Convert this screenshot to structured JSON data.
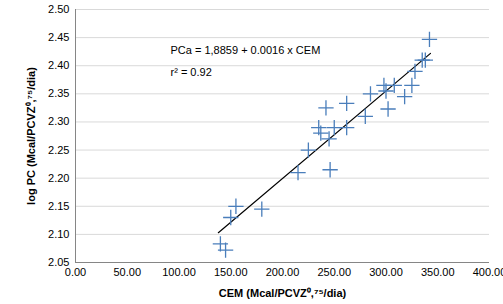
{
  "chart_data": {
    "type": "scatter",
    "x_label": "CEM (Mcal/PCVZ⁰,⁷⁵/dia)",
    "y_label": "log PC (Mcal/PCVZ⁰,⁷⁵/dia)",
    "annotations": [
      "PCa = 1,8859 + 0.0016 x CEM",
      "r² = 0.92"
    ],
    "x": [
      140,
      145,
      150,
      155,
      180,
      215,
      225,
      235,
      237,
      242,
      245,
      246,
      250,
      262,
      262,
      280,
      285,
      298,
      300,
      302,
      308,
      318,
      325,
      328,
      335,
      338,
      342
    ],
    "values": [
      2.083,
      2.072,
      2.13,
      2.15,
      2.145,
      2.21,
      2.25,
      2.29,
      2.28,
      2.325,
      2.27,
      2.215,
      2.29,
      2.333,
      2.29,
      2.31,
      2.35,
      2.365,
      2.355,
      2.323,
      2.365,
      2.345,
      2.365,
      2.39,
      2.41,
      2.41,
      2.447
    ],
    "color": "#4a7ebb",
    "marker": "plus",
    "trendline": {
      "x": [
        138,
        343
      ],
      "values": [
        2.103,
        2.422
      ],
      "color": "#000000",
      "line_style": "solid"
    },
    "xlim": [
      0,
      400
    ],
    "xticks": [
      {
        "value": 0,
        "label": "0.00"
      },
      {
        "value": 50,
        "label": "50.00"
      },
      {
        "value": 100,
        "label": "100.00"
      },
      {
        "value": 150,
        "label": "150.00"
      },
      {
        "value": 200,
        "label": "200.00"
      },
      {
        "value": 250,
        "label": "250.00"
      },
      {
        "value": 300,
        "label": "300.00"
      },
      {
        "value": 350,
        "label": "350.00"
      },
      {
        "value": 400,
        "label": "400.00"
      }
    ],
    "ylim": [
      2.05,
      2.5
    ],
    "yticks": [
      {
        "value": 2.05,
        "label": "2.05"
      },
      {
        "value": 2.1,
        "label": "2.10"
      },
      {
        "value": 2.15,
        "label": "2.15"
      },
      {
        "value": 2.2,
        "label": "2.20"
      },
      {
        "value": 2.25,
        "label": "2.25"
      },
      {
        "value": 2.3,
        "label": "2.30"
      },
      {
        "value": 2.35,
        "label": "2.35"
      },
      {
        "value": 2.4,
        "label": "2.40"
      },
      {
        "value": 2.45,
        "label": "2.45"
      },
      {
        "value": 2.5,
        "label": "2.50"
      }
    ],
    "grid": "y"
  }
}
